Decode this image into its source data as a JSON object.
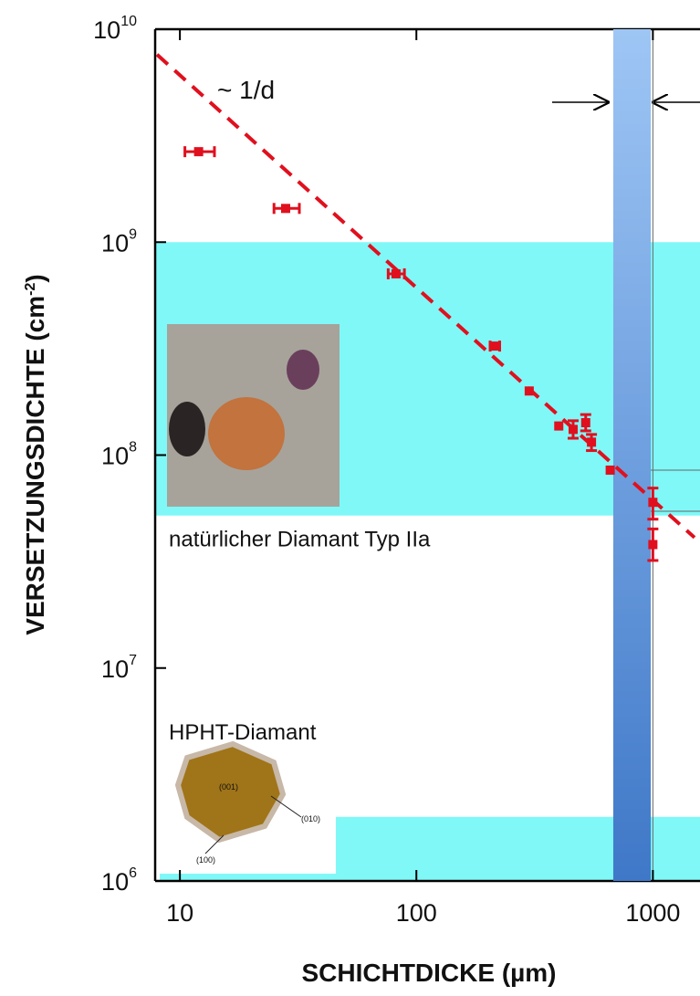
{
  "chart_data": {
    "type": "scatter",
    "xlabel": "SCHICHTDICKE (µm)",
    "ylabel": "VERSETZUNGSDICHTE (cm",
    "ylabel_exponent": "-2",
    "ylabel_end": ")",
    "xlog": true,
    "ylog": true,
    "xlim": [
      8,
      1500
    ],
    "ylim": [
      1000000,
      10000000000
    ],
    "xticks": [
      10,
      100,
      1000
    ],
    "yticks": [
      {
        "value": 1000000,
        "label": "10",
        "exponent": "6"
      },
      {
        "value": 10000000,
        "label": "10",
        "exponent": "7"
      },
      {
        "value": 100000000,
        "label": "10",
        "exponent": "8"
      },
      {
        "value": 1000000000,
        "label": "10",
        "exponent": "9"
      },
      {
        "value": 10000000000,
        "label": "10",
        "exponent": "10"
      }
    ],
    "series": [
      {
        "color": "#e0101e",
        "x": [
          12,
          28,
          82,
          215,
          300,
          400,
          460,
          520,
          550,
          660,
          1000,
          1000
        ],
        "values": [
          2660000000,
          1440000000,
          710000000,
          325000000,
          200000000,
          137000000,
          132000000,
          142000000,
          115000000,
          85000000,
          60000000,
          38000000
        ],
        "xerr": [
          [
            10.5,
            14
          ],
          [
            25,
            32
          ],
          [
            76,
            89
          ],
          [
            205,
            225
          ],
          null,
          null,
          null,
          null,
          null,
          null,
          null,
          null
        ],
        "yerr": [
          null,
          null,
          null,
          null,
          null,
          null,
          [
            120000000,
            145000000
          ],
          [
            130000000,
            155000000
          ],
          [
            105000000,
            125000000
          ],
          null,
          [
            50000000,
            70000000
          ],
          [
            32000000,
            45000000
          ]
        ]
      },
      {
        "type": "line",
        "dashed": true,
        "color": "#e0101e",
        "x": [
          8,
          1500
        ],
        "values": [
          7600000000,
          41000000
        ]
      }
    ],
    "annotation": "~ 1/d",
    "regions": [
      {
        "ylim": [
          52000000,
          1000000000
        ],
        "color": "#80f8f8",
        "label": "natürlicher Diamant Typ IIa"
      },
      {
        "ylim": [
          1000000,
          2000000
        ],
        "color": "#80f8f8",
        "label": "HPHT-Diamant"
      }
    ],
    "vband": {
      "xlim": [
        680,
        980
      ],
      "color": "#5b8fd8"
    },
    "vline": 1000,
    "photo_labels": [
      "(001)",
      "(010)",
      "(100)"
    ]
  }
}
